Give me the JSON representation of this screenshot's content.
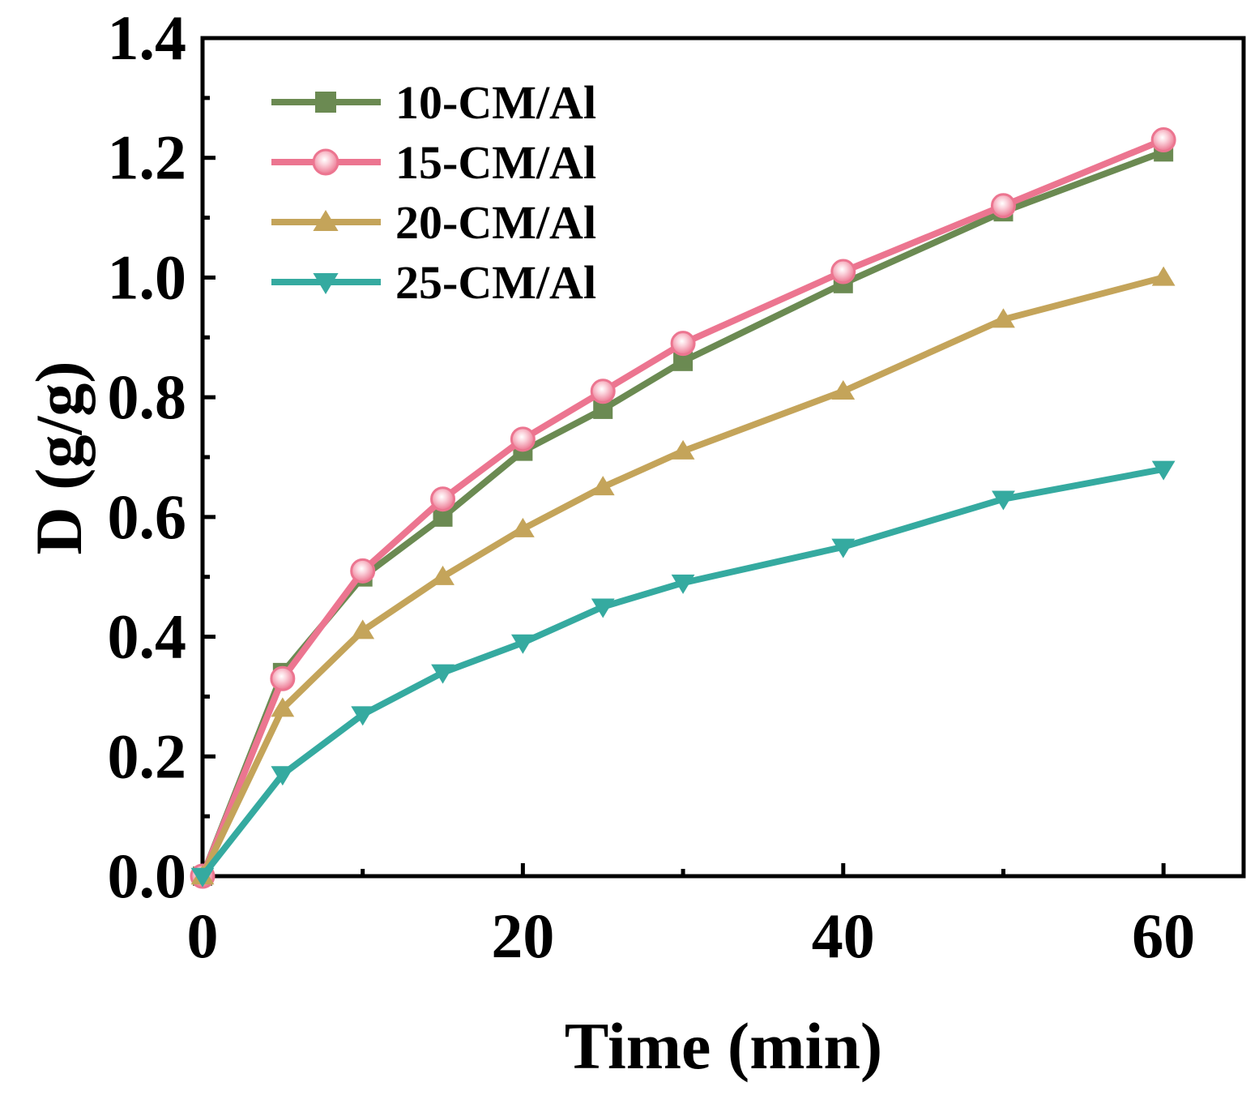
{
  "chart_data": {
    "type": "line",
    "title": "",
    "xlabel": "Time (min)",
    "ylabel": "D (g/g)",
    "xlim": [
      0,
      65
    ],
    "ylim": [
      0,
      1.4
    ],
    "x_ticks": [
      0,
      20,
      40,
      60
    ],
    "x_tick_labels": [
      "0",
      "20",
      "40",
      "60"
    ],
    "y_ticks": [
      0,
      0.2,
      0.4,
      0.6,
      0.8,
      1.0,
      1.2,
      1.4
    ],
    "y_tick_labels": [
      "0.0",
      "0.2",
      "0.4",
      "0.6",
      "0.8",
      "1.0",
      "1.2",
      "1.4"
    ],
    "grid": false,
    "legend_position": "top-left",
    "x": [
      0,
      5,
      10,
      15,
      20,
      25,
      30,
      40,
      50,
      60
    ],
    "series": [
      {
        "name": "10-CM/Al",
        "marker": "square",
        "color": "#6b8a52",
        "values": [
          0,
          0.34,
          0.5,
          0.6,
          0.71,
          0.78,
          0.86,
          0.99,
          1.11,
          1.21
        ]
      },
      {
        "name": "15-CM/Al",
        "marker": "circle",
        "color": "#ec7590",
        "values": [
          0,
          0.33,
          0.51,
          0.63,
          0.73,
          0.81,
          0.89,
          1.01,
          1.12,
          1.23
        ]
      },
      {
        "name": "20-CM/Al",
        "marker": "triangle-up",
        "color": "#c4a45a",
        "values": [
          0,
          0.28,
          0.41,
          0.5,
          0.58,
          0.65,
          0.71,
          0.81,
          0.93,
          1.0
        ]
      },
      {
        "name": "25-CM/Al",
        "marker": "triangle-down",
        "color": "#35aaa0",
        "values": [
          0,
          0.17,
          0.27,
          0.34,
          0.39,
          0.45,
          0.49,
          0.55,
          0.63,
          0.68
        ]
      }
    ]
  }
}
